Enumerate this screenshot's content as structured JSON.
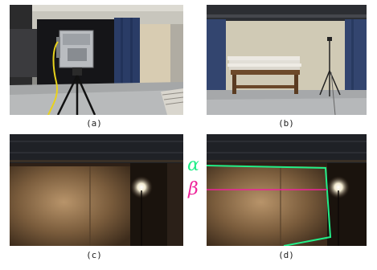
{
  "figure": {
    "panels": [
      {
        "id": "a",
        "caption": "(a)"
      },
      {
        "id": "b",
        "caption": "(b)"
      },
      {
        "id": "c",
        "caption": "(c)"
      },
      {
        "id": "d",
        "caption": "(d)"
      }
    ],
    "annotations": {
      "alpha": {
        "symbol": "α",
        "color": "#22ee88"
      },
      "beta": {
        "symbol": "β",
        "color": "#ee2299"
      }
    }
  }
}
